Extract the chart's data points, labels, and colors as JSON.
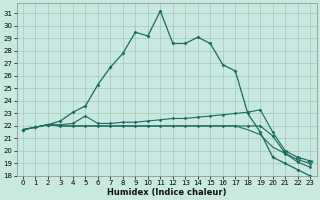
{
  "title": "",
  "xlabel": "Humidex (Indice chaleur)",
  "background_color": "#c8e8e0",
  "grid_color": "#a0c8c0",
  "line_color": "#1a6b60",
  "xlim": [
    -0.5,
    23.5
  ],
  "ylim": [
    18,
    31.8
  ],
  "yticks": [
    18,
    19,
    20,
    21,
    22,
    23,
    24,
    25,
    26,
    27,
    28,
    29,
    30,
    31
  ],
  "xticks": [
    0,
    1,
    2,
    3,
    4,
    5,
    6,
    7,
    8,
    9,
    10,
    11,
    12,
    13,
    14,
    15,
    16,
    17,
    18,
    19,
    20,
    21,
    22,
    23
  ],
  "curve1": [
    21.7,
    21.9,
    22.1,
    22.4,
    23.1,
    23.6,
    25.3,
    26.7,
    27.8,
    29.5,
    29.2,
    31.2,
    28.6,
    28.6,
    29.1,
    28.6,
    26.9,
    26.4,
    23.0,
    21.5,
    19.5,
    19.0,
    18.5,
    18.0
  ],
  "curve2": [
    21.7,
    21.9,
    22.1,
    22.1,
    22.2,
    22.8,
    22.2,
    22.2,
    22.3,
    22.3,
    22.4,
    22.5,
    22.6,
    22.6,
    22.7,
    22.8,
    22.9,
    23.0,
    23.1,
    23.3,
    21.5,
    20.0,
    19.5,
    19.2
  ],
  "curve3": [
    21.7,
    21.9,
    22.1,
    22.0,
    22.0,
    22.0,
    22.0,
    22.0,
    22.0,
    22.0,
    22.0,
    22.0,
    22.0,
    22.0,
    22.0,
    22.0,
    22.0,
    22.0,
    22.0,
    22.0,
    21.2,
    19.8,
    19.1,
    18.7
  ],
  "curve4": [
    21.7,
    21.9,
    22.1,
    22.0,
    22.0,
    22.0,
    22.0,
    22.0,
    22.0,
    22.0,
    22.0,
    22.0,
    22.0,
    22.0,
    22.0,
    22.0,
    22.0,
    22.0,
    21.7,
    21.3,
    20.3,
    19.8,
    19.3,
    19.0
  ]
}
